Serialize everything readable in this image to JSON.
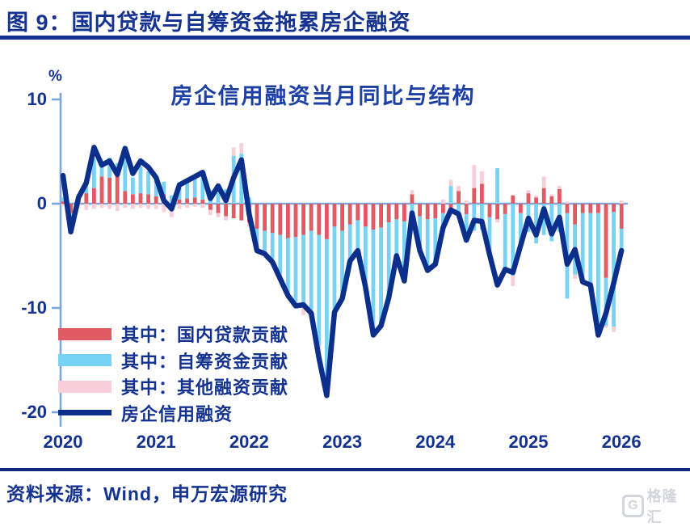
{
  "header": {
    "title": "图 9：国内贷款与自筹资金拖累房企融资"
  },
  "source": {
    "text": "资料来源：Wind，申万宏源研究"
  },
  "watermark": {
    "icon": "G",
    "text": "格隆汇"
  },
  "colors": {
    "navy_text": "#14328F",
    "line": "#0D2F8C",
    "axis": "#7BA7DC",
    "red": "#E05A63",
    "blue": "#76D3F5",
    "pink": "#F6CFD8",
    "divider": "#0D2B7E",
    "logo_grey": "#d2d5dc"
  },
  "chart_data": {
    "type": "bar-line",
    "title": "房企信用融资当月同比与结构",
    "unit_label": "%",
    "x_freq": "monthly",
    "ylim": [
      -20,
      10
    ],
    "yticks": [
      10,
      0,
      -10,
      -20
    ],
    "xtick_labels": [
      "2020",
      "2021",
      "2022",
      "2023",
      "2024",
      "2025",
      "2026"
    ],
    "grid": "zero-line-only",
    "legend_position": "lower-left-inside",
    "categories": [
      "2020-01",
      "2020-02",
      "2020-03",
      "2020-04",
      "2020-05",
      "2020-06",
      "2020-07",
      "2020-08",
      "2020-09",
      "2020-10",
      "2020-11",
      "2020-12",
      "2021-01",
      "2021-02",
      "2021-03",
      "2021-04",
      "2021-05",
      "2021-06",
      "2021-07",
      "2021-08",
      "2021-09",
      "2021-10",
      "2021-11",
      "2021-12",
      "2022-01",
      "2022-02",
      "2022-03",
      "2022-04",
      "2022-05",
      "2022-06",
      "2022-07",
      "2022-08",
      "2022-09",
      "2022-10",
      "2022-11",
      "2022-12",
      "2023-01",
      "2023-02",
      "2023-03",
      "2023-04",
      "2023-05",
      "2023-06",
      "2023-07",
      "2023-08",
      "2023-09",
      "2023-10",
      "2023-11",
      "2023-12",
      "2024-01",
      "2024-02",
      "2024-03",
      "2024-04",
      "2024-05",
      "2024-06",
      "2024-07",
      "2024-08",
      "2024-09",
      "2024-10",
      "2024-11",
      "2024-12",
      "2025-01",
      "2025-02",
      "2025-03",
      "2025-04",
      "2025-05",
      "2025-06",
      "2025-07",
      "2025-08",
      "2025-09",
      "2025-10",
      "2025-11",
      "2025-12",
      "2026-01"
    ],
    "series": [
      {
        "name": "其中：国内贷款贡献",
        "type": "bar",
        "color_key": "red",
        "values": [
          0.2,
          -0.9,
          0.3,
          1.0,
          1.5,
          2.6,
          2.5,
          2.7,
          1.2,
          0.9,
          1.0,
          0.9,
          0.7,
          0.9,
          -0.6,
          0.4,
          0.5,
          0.6,
          0.4,
          -0.6,
          -0.9,
          -1.2,
          -1.4,
          -1.6,
          -1.8,
          -2.4,
          -2.6,
          -2.8,
          -3.0,
          -3.3,
          -3.2,
          -3.0,
          -2.6,
          -3.0,
          -3.4,
          -2.2,
          -2.6,
          -2.0,
          -1.6,
          -2.2,
          -2.5,
          -2.3,
          -1.8,
          -1.5,
          -1.7,
          0.9,
          -1.2,
          -1.5,
          -1.4,
          -0.9,
          -0.7,
          1.2,
          -1.0,
          1.5,
          1.9,
          -1.3,
          -1.5,
          -1.0,
          0.8,
          -0.9,
          1.0,
          0.6,
          1.5,
          0.7,
          1.4,
          -0.9,
          -2.0,
          -0.9,
          -0.9,
          -0.9,
          -7.1,
          -0.8,
          -2.4
        ]
      },
      {
        "name": "其中：自筹资金贡献",
        "type": "bar",
        "color_key": "blue",
        "values": [
          0.4,
          -0.8,
          0.5,
          1.2,
          2.8,
          1.4,
          1.9,
          1.2,
          4.3,
          1.6,
          2.6,
          2.2,
          1.5,
          1.2,
          0.8,
          1.6,
          1.9,
          2.2,
          2.4,
          1.3,
          1.8,
          1.4,
          4.6,
          4.8,
          0.6,
          -1.6,
          -1.9,
          -2.5,
          -3.8,
          -5.2,
          -6.2,
          -6.5,
          -7.6,
          -10.6,
          -13.5,
          -8.0,
          -6.3,
          -3.4,
          -2.7,
          -5.6,
          -9.8,
          -9.2,
          -7.0,
          -3.4,
          -5.6,
          -2.2,
          -3.2,
          -4.7,
          -4.2,
          -1.3,
          1.7,
          -1.4,
          -2.4,
          -2.6,
          -2.5,
          -3.4,
          3.4,
          -5.3,
          -6.9,
          -3.0,
          -2.7,
          -3.8,
          -3.0,
          -3.6,
          -2.7,
          -8.2,
          -4.8,
          -6.3,
          -7.5,
          -10.8,
          -4.6,
          -11.0,
          -2.2
        ]
      },
      {
        "name": "其中：其他融资贡献",
        "type": "bar",
        "color_key": "pink",
        "values": [
          -0.2,
          -0.9,
          -0.4,
          -0.6,
          -0.5,
          -0.4,
          -0.5,
          -0.7,
          -0.4,
          -0.5,
          -0.4,
          -0.5,
          -0.5,
          -0.8,
          -0.7,
          -0.5,
          -0.4,
          -0.3,
          -0.4,
          -0.5,
          -0.4,
          -0.4,
          0.8,
          1.0,
          -0.4,
          -0.5,
          -0.3,
          -0.3,
          -0.4,
          -0.3,
          -0.4,
          -1.2,
          -0.3,
          -0.9,
          -1.5,
          -0.2,
          -0.2,
          -0.1,
          -0.2,
          -0.2,
          -0.3,
          -0.2,
          -0.2,
          -0.1,
          -0.1,
          0.4,
          -0.1,
          -0.2,
          -0.2,
          0.4,
          0.6,
          0.5,
          0.3,
          2.2,
          1.2,
          -0.2,
          -0.3,
          -0.2,
          -1.0,
          -0.1,
          0.3,
          0.2,
          1.1,
          0.2,
          0.3,
          0.2,
          -0.4,
          -0.3,
          -0.2,
          -0.3,
          -0.2,
          -0.5,
          0.3
        ]
      },
      {
        "name": "房企信用融资",
        "type": "line",
        "color_key": "line",
        "values": [
          2.7,
          -2.7,
          0.6,
          2.0,
          5.4,
          3.7,
          4.1,
          2.8,
          5.3,
          2.9,
          4.1,
          3.5,
          2.5,
          0.3,
          -0.5,
          1.8,
          2.2,
          2.6,
          3.0,
          0.5,
          1.7,
          0.3,
          2.5,
          4.2,
          -1.0,
          -4.5,
          -4.8,
          -5.6,
          -7.2,
          -8.8,
          -9.8,
          -9.7,
          -10.5,
          -14.8,
          -18.4,
          -10.4,
          -9.1,
          -5.5,
          -4.5,
          -8.0,
          -12.6,
          -11.7,
          -9.0,
          -5.0,
          -7.4,
          -0.9,
          -4.5,
          -6.4,
          -5.8,
          -2.3,
          -0.6,
          -1.0,
          -3.5,
          -1.6,
          -1.7,
          -4.9,
          -7.8,
          -6.3,
          -6.6,
          -4.0,
          -1.4,
          -3.0,
          -0.5,
          -2.9,
          -1.3,
          -5.8,
          -4.4,
          -7.5,
          -7.8,
          -12.6,
          -10.5,
          -7.6,
          -4.5
        ]
      }
    ]
  }
}
